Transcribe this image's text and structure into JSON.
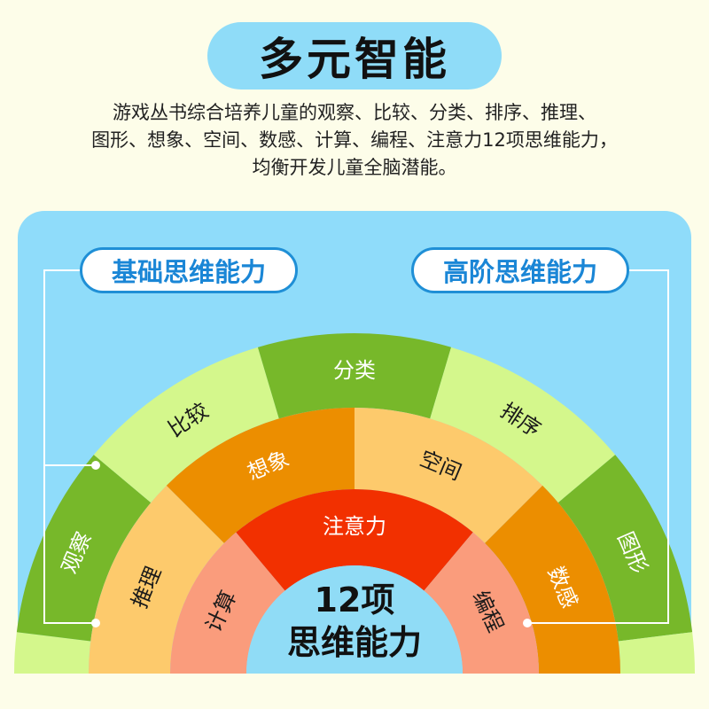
{
  "title": "多元智能",
  "description": [
    "游戏丛书综合培养儿童的观察、比较、分类、排序、推理、",
    "图形、想象、空间、数感、计算、编程、注意力12项思维能力，",
    "均衡开发儿童全脑潜能。"
  ],
  "badges": {
    "left": "基础思维能力",
    "right": "高阶思维能力"
  },
  "center": {
    "line1": "12项",
    "line2": "思维能力"
  },
  "colors": {
    "background": "#fdfde9",
    "panel": "#8fdcfa",
    "badge_text": "#1a86d6",
    "outer_light": "#d4f78c",
    "outer_dark": "#77b82a",
    "middle_light": "#fdca6c",
    "middle_dark": "#ec8e00",
    "inner_light": "#fa9c7c",
    "inner_dark": "#f23000",
    "center": "#90dcf6"
  },
  "rings": {
    "outer": [
      {
        "label": ""
      },
      {
        "label": "观察"
      },
      {
        "label": "比较"
      },
      {
        "label": "分类"
      },
      {
        "label": "排序"
      },
      {
        "label": "图形"
      },
      {
        "label": ""
      }
    ],
    "middle": [
      {
        "label": "推理"
      },
      {
        "label": "想象"
      },
      {
        "label": "空间"
      },
      {
        "label": "数感"
      }
    ],
    "inner": [
      {
        "label": "计算"
      },
      {
        "label": "注意力"
      },
      {
        "label": "编程"
      }
    ]
  }
}
